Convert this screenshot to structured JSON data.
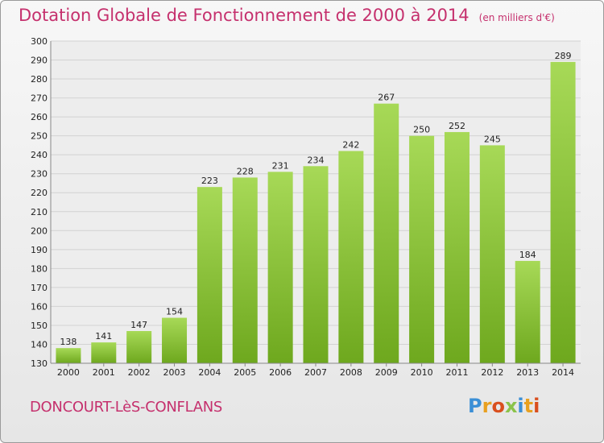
{
  "header": {
    "title": "Dotation Globale de Fonctionnement de 2000 à 2014",
    "unit": "(en milliers d'€)"
  },
  "footer": {
    "commune": "DONCOURT-LèS-CONFLANS",
    "brand_letters": [
      "P",
      "r",
      "o",
      "x",
      "i",
      "t",
      "i"
    ],
    "brand_colors": [
      "#3b8fd6",
      "#e8a020",
      "#d94f1e",
      "#8bc34a",
      "#3b8fd6",
      "#e8a020",
      "#d94f1e"
    ]
  },
  "colors": {
    "bar_light": "#a7d957",
    "bar_dark": "#6ea81e",
    "title": "#c5306d"
  },
  "chart_data": {
    "type": "bar",
    "title": "Dotation Globale de Fonctionnement de 2000 à 2014",
    "categories": [
      "2000",
      "2001",
      "2002",
      "2003",
      "2004",
      "2005",
      "2006",
      "2007",
      "2008",
      "2009",
      "2010",
      "2011",
      "2012",
      "2013",
      "2014"
    ],
    "values": [
      138,
      141,
      147,
      154,
      223,
      228,
      231,
      234,
      242,
      267,
      250,
      252,
      245,
      184,
      289
    ],
    "ylim": [
      130,
      300
    ],
    "yticks": [
      130,
      140,
      150,
      160,
      170,
      180,
      190,
      200,
      210,
      220,
      230,
      240,
      250,
      260,
      270,
      280,
      290,
      300
    ],
    "grid": true,
    "xlabel": "",
    "ylabel": ""
  }
}
